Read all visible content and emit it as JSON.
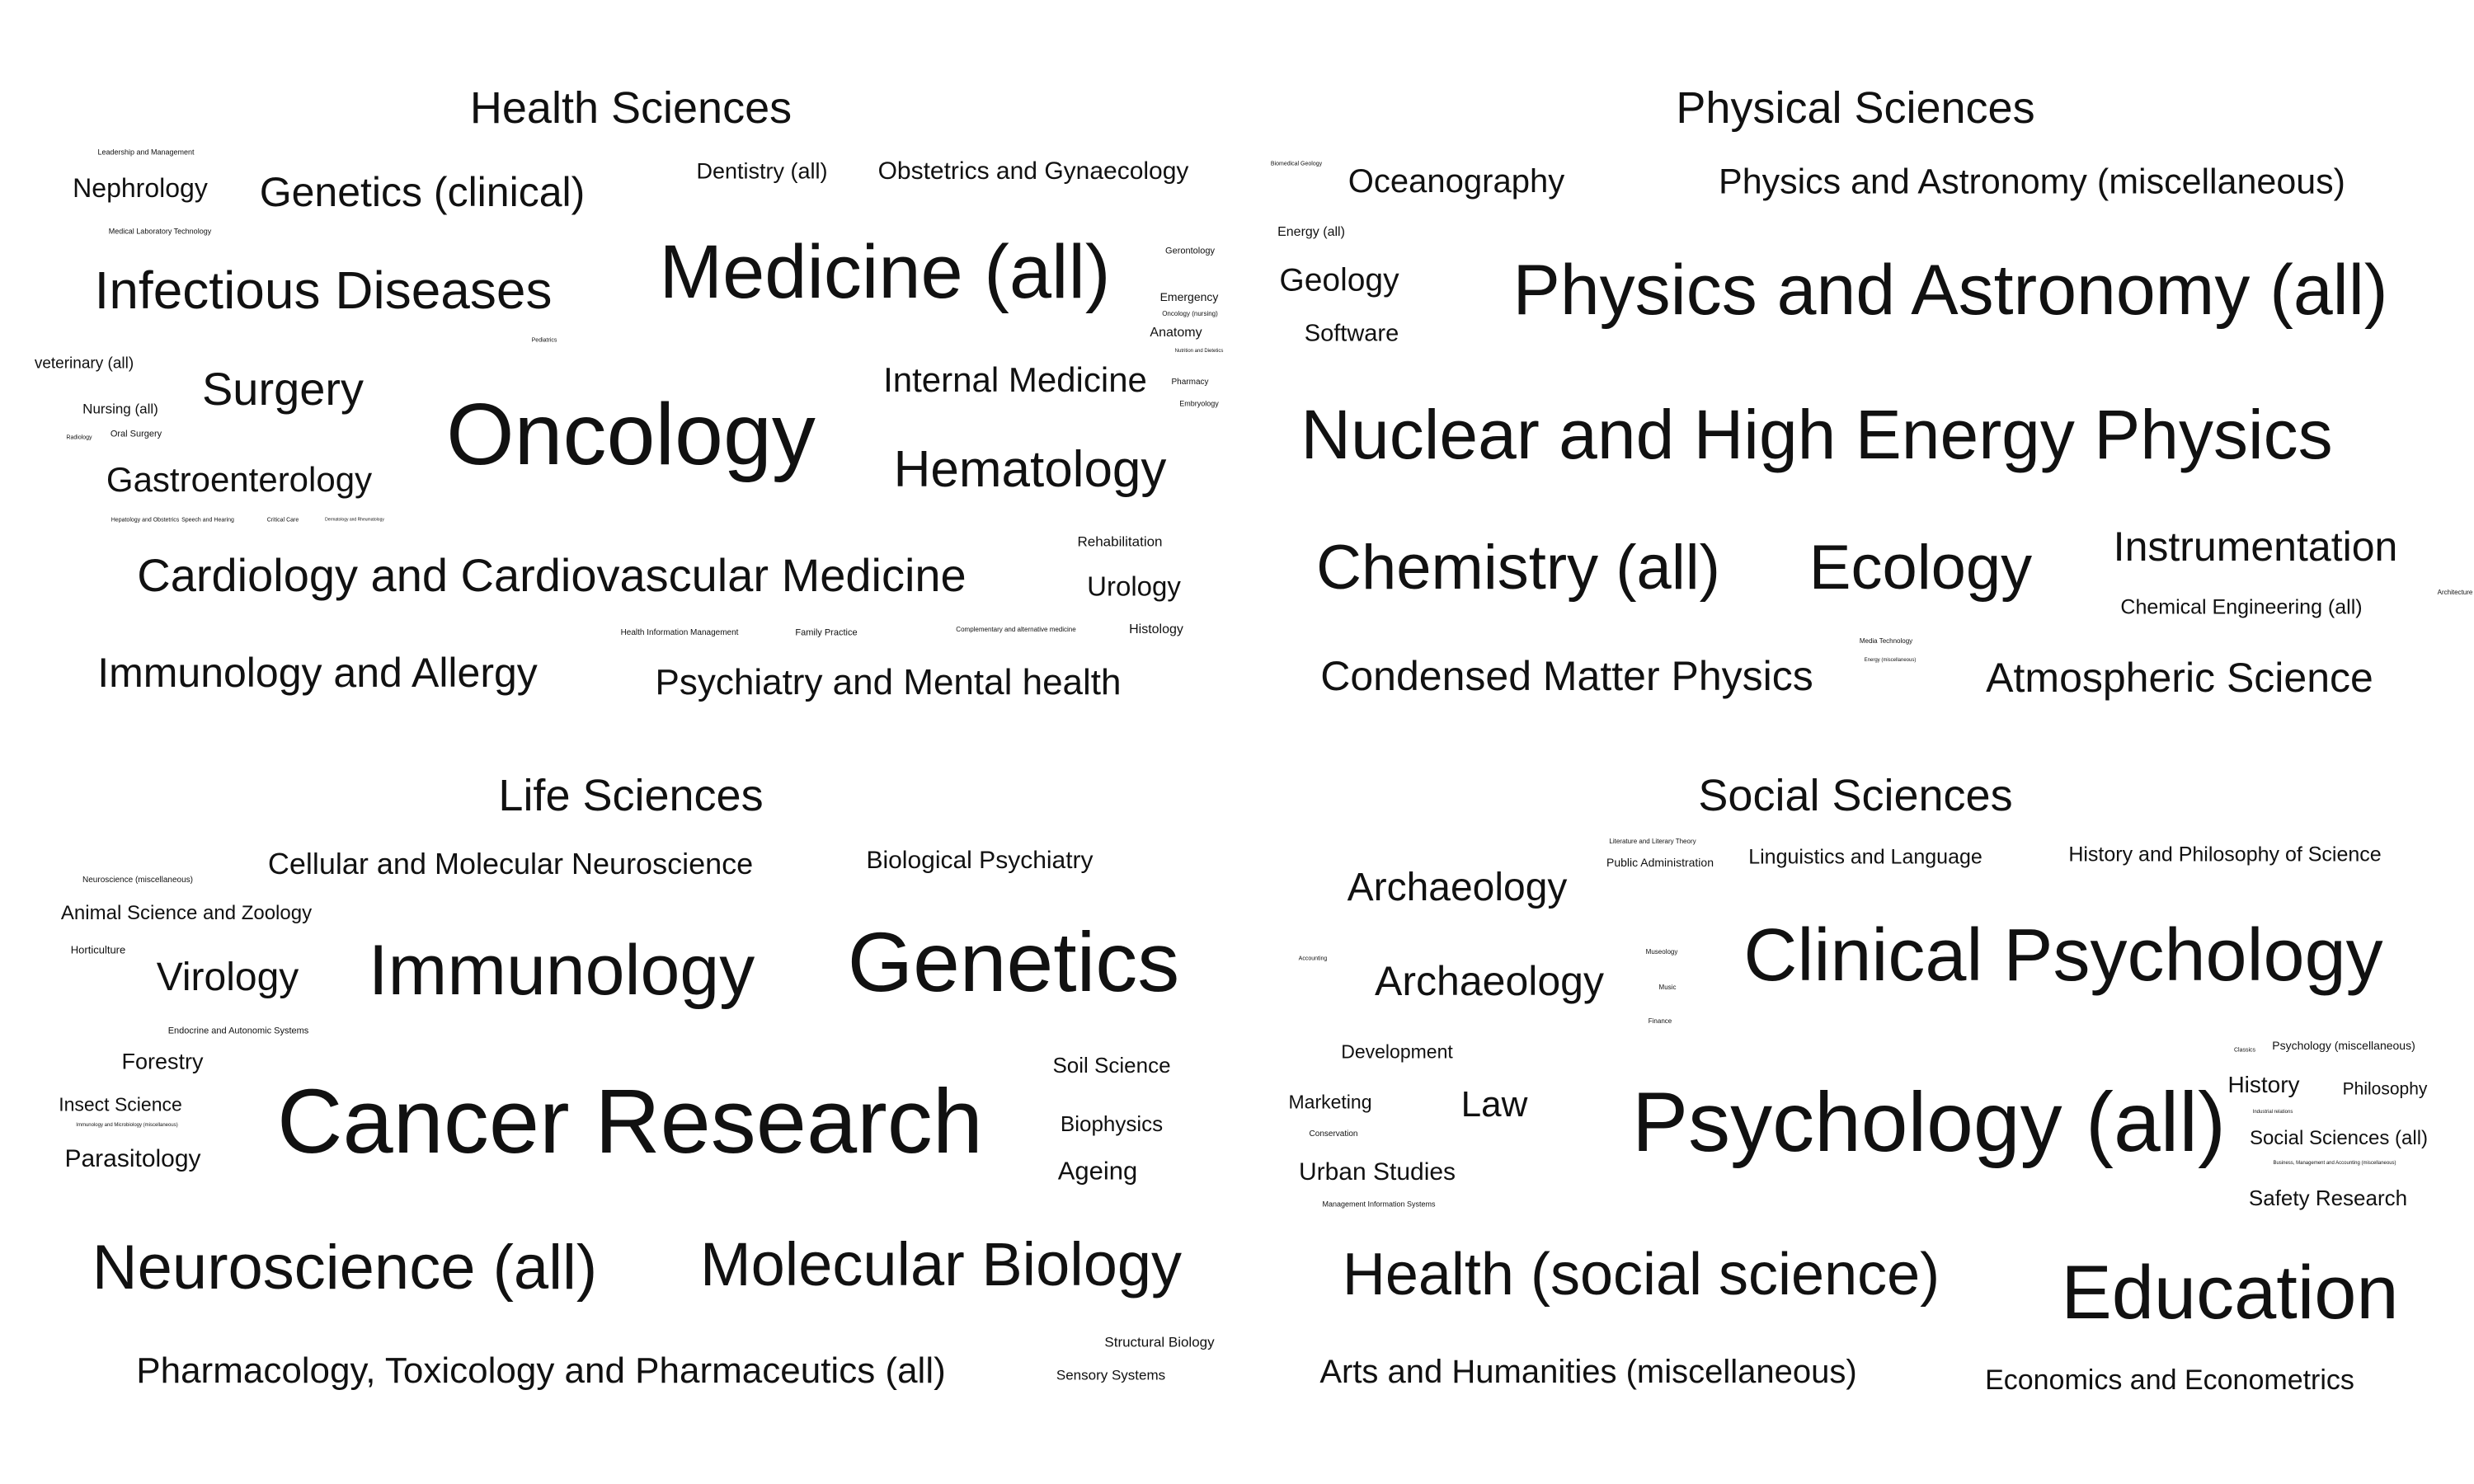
{
  "panels": {
    "health": {
      "title": "Health Sciences",
      "words": [
        "Leadership and Management",
        "Nephrology",
        "Genetics (clinical)",
        "Dentistry (all)",
        "Obstetrics and Gynaecology",
        "Medical Laboratory Technology",
        "Medicine (all)",
        "Gerontology",
        "Emergency",
        "Oncology (nursing)",
        "Infectious Diseases",
        "Anatomy",
        "Pediatrics",
        "Nutrition and Dietetics",
        "veterinary (all)",
        "Surgery",
        "Internal Medicine",
        "Pharmacy",
        "Embryology",
        "Nursing (all)",
        "Oral Surgery",
        "Oncology",
        "Radiology",
        "Gastroenterology",
        "Hematology",
        "Hepatology and Obstetrics",
        "Speech and Hearing",
        "Critical Care",
        "Dermatology and Rheumatology",
        "Cardiology and Cardiovascular Medicine",
        "Rehabilitation",
        "Urology",
        "Immunology and Allergy",
        "Health Information Management",
        "Family Practice",
        "Complementary and alternative medicine",
        "Histology",
        "Psychiatry and Mental health"
      ]
    },
    "physical": {
      "title": "Physical Sciences",
      "words": [
        "Biomedical Geology",
        "Oceanography",
        "Physics and Astronomy (miscellaneous)",
        "Energy (all)",
        "Geology",
        "Physics and Astronomy (all)",
        "Software",
        "Nuclear and High Energy Physics",
        "Chemistry (all)",
        "Ecology",
        "Instrumentation",
        "Chemical Engineering (all)",
        "Architecture",
        "Media Technology",
        "Energy (miscellaneous)",
        "Condensed Matter Physics",
        "Atmospheric Science"
      ]
    },
    "life": {
      "title": "Life Sciences",
      "words": [
        "Cellular and Molecular Neuroscience",
        "Biological Psychiatry",
        "Neuroscience (miscellaneous)",
        "Animal Science and Zoology",
        "Horticulture",
        "Virology",
        "Immunology",
        "Genetics",
        "Endocrine and Autonomic Systems",
        "Forestry",
        "Soil Science",
        "Insect Science",
        "Immunology and Microbiology (miscellaneous)",
        "Cancer Research",
        "Biophysics",
        "Parasitology",
        "Ageing",
        "Neuroscience (all)",
        "Molecular Biology",
        "Structural Biology",
        "Pharmacology, Toxicology and Pharmaceutics (all)",
        "Sensory Systems"
      ]
    },
    "social": {
      "title": "Social Sciences",
      "words": [
        "Literature and Literary Theory",
        "Public Administration",
        "Linguistics and Language",
        "History and Philosophy of Science",
        "Archaeology",
        "Clinical Psychology",
        "Accounting",
        "Archaeology",
        "Museology",
        "Music",
        "Finance",
        "Development",
        "Psychology (miscellaneous)",
        "Classics",
        "History",
        "Philosophy",
        "Marketing",
        "Law",
        "Psychology (all)",
        "Industrial relations",
        "Conservation",
        "Social Sciences (all)",
        "Business, Management and Accounting (miscellaneous)",
        "Urban Studies",
        "Safety Research",
        "Management Information Systems",
        "Health (social science)",
        "Education",
        "Arts and Humanities (miscellaneous)",
        "Economics and Econometrics"
      ]
    }
  }
}
